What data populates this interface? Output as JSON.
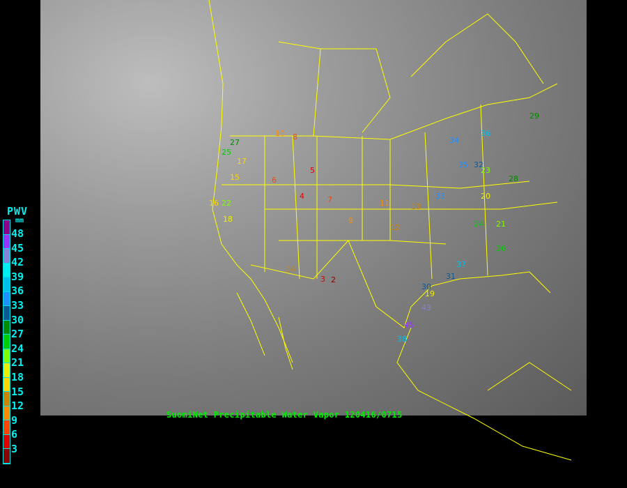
{
  "legend": {
    "title": "PWV",
    "unit": "mm",
    "labels": [
      "48",
      "45",
      "42",
      "39",
      "36",
      "33",
      "30",
      "27",
      "24",
      "21",
      "18",
      "15",
      "12",
      "9",
      "6",
      "3"
    ],
    "colors": [
      "#8b008b",
      "#9933ff",
      "#8484d6",
      "#00eeee",
      "#00bfee",
      "#1e90ff",
      "#0a5a96",
      "#008b00",
      "#00cd00",
      "#7fff00",
      "#eeee00",
      "#ffd700",
      "#cd8500",
      "#ff8c00",
      "#ff4500",
      "#dd0000",
      "#8b0000"
    ]
  },
  "caption": "SuomiNet Precipitable Water Vapor 120416/0715",
  "border_color": "#ffff00",
  "stations": [
    "27",
    "25",
    "17",
    "16",
    "22",
    "18",
    "15",
    "10",
    "8",
    "6",
    "5",
    "3",
    "4",
    "7",
    "9",
    "11",
    "13",
    "12",
    "2",
    "14",
    "19",
    "20",
    "21",
    "23",
    "24",
    "30",
    "31",
    "33",
    "34",
    "35",
    "36",
    "37",
    "38",
    "43",
    "45",
    "29",
    "26",
    "28",
    "32"
  ]
}
